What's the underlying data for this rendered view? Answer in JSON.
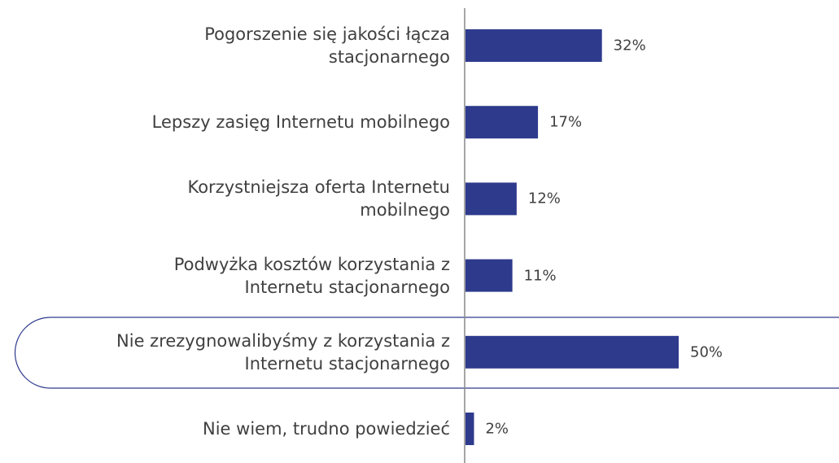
{
  "chart_data": {
    "type": "bar",
    "orientation": "horizontal",
    "categories": [
      "Pogorszenie się jakości łącza\nstacjonarnego",
      "Lepszy zasięg Internetu mobilnego",
      "Korzystniejsza oferta Internetu\nmobilnego",
      "Podwyżka kosztów korzystania z\nInternetu stacjonarnego",
      "Nie zrezygnowalibyśmy z korzystania z\nInternetu stacjonarnego",
      "Nie wiem, trudno powiedzieć"
    ],
    "values": [
      32,
      17,
      12,
      11,
      50,
      2
    ],
    "value_labels": [
      "32%",
      "17%",
      "12%",
      "11%",
      "50%",
      "2%"
    ],
    "color": "#2e3a8c"
  }
}
